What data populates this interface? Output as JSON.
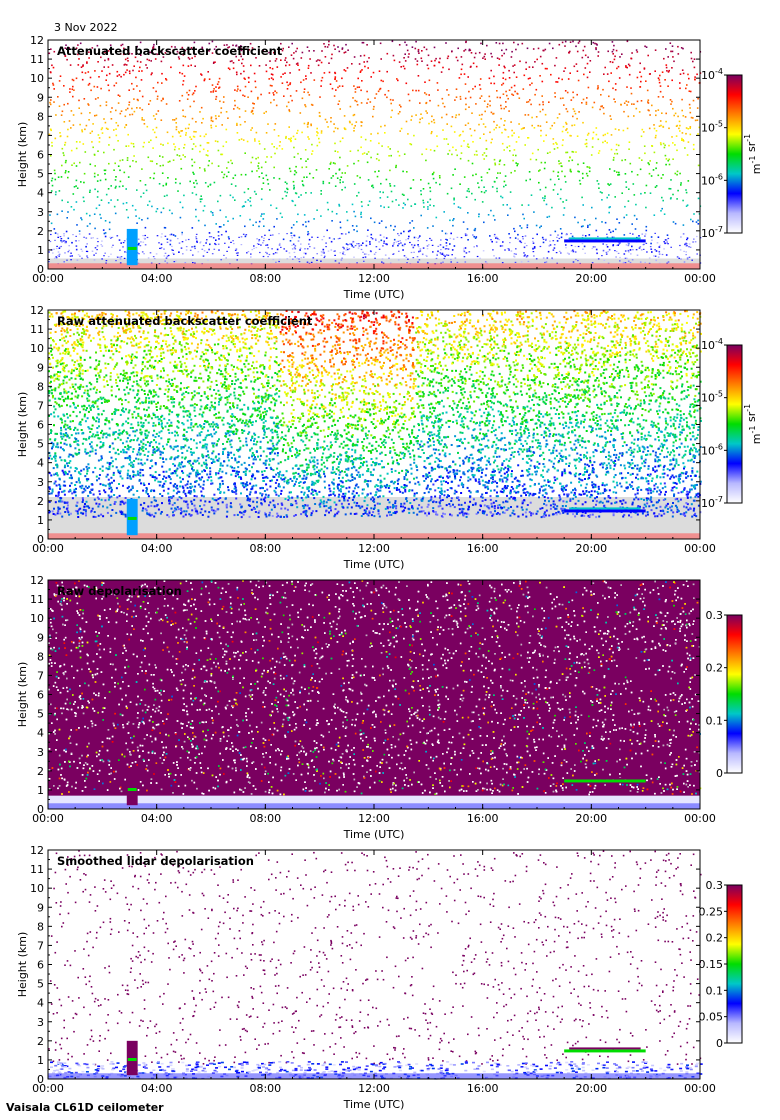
{
  "date": "3 Nov 2022",
  "instrument": "Vaisala CL61D ceilometer",
  "colors": {
    "background_gray": "#dcdcdc",
    "rainbow": [
      "#ffffff",
      "#b8b8ff",
      "#0000ff",
      "#00c8c8",
      "#00dd00",
      "#ffff00",
      "#ff8000",
      "#ff0000",
      "#7a0060"
    ]
  },
  "chart_data": [
    {
      "type": "heatmap",
      "title": "Attenuated backscatter coefficient",
      "xlabel": "Time (UTC)",
      "ylabel": "Height (km)",
      "xticks": [
        "00:00",
        "04:00",
        "08:00",
        "12:00",
        "16:00",
        "20:00",
        "00:00"
      ],
      "yticks": [
        0,
        1,
        2,
        3,
        4,
        5,
        6,
        7,
        8,
        9,
        10,
        11,
        12
      ],
      "ylim": [
        0,
        12
      ],
      "colorbar": {
        "scale": "log",
        "ticks": [
          {
            "base": "10",
            "exp": "-4"
          },
          {
            "base": "10",
            "exp": "-5"
          },
          {
            "base": "10",
            "exp": "-6"
          },
          {
            "base": "10",
            "exp": "-7"
          }
        ],
        "range": [
          1e-07,
          0.0001
        ],
        "unit_base": [
          "m",
          "sr"
        ],
        "unit_exp": [
          "-1",
          "-1"
        ]
      },
      "features": {
        "tower_hours": [
          2.9,
          3.3
        ],
        "tower_top_km": 2.1,
        "cloud_layer_km": 1.55,
        "cloud_hours": [
          19.0,
          22.0
        ]
      }
    },
    {
      "type": "heatmap",
      "title": "Raw attenuated backscatter coefficient",
      "xlabel": "Time (UTC)",
      "ylabel": "Height (km)",
      "xticks": [
        "00:00",
        "04:00",
        "08:00",
        "12:00",
        "16:00",
        "20:00",
        "00:00"
      ],
      "yticks": [
        0,
        1,
        2,
        3,
        4,
        5,
        6,
        7,
        8,
        9,
        10,
        11,
        12
      ],
      "ylim": [
        0,
        12
      ],
      "colorbar": {
        "scale": "log",
        "ticks": [
          {
            "base": "10",
            "exp": "-4"
          },
          {
            "base": "10",
            "exp": "-5"
          },
          {
            "base": "10",
            "exp": "-6"
          },
          {
            "base": "10",
            "exp": "-7"
          }
        ],
        "range": [
          1e-07,
          0.0001
        ],
        "unit_base": [
          "m",
          "sr"
        ],
        "unit_exp": [
          "-1",
          "-1"
        ]
      },
      "features": {
        "tower_hours": [
          2.9,
          3.3
        ],
        "tower_top_km": 2.1,
        "cloud_layer_km": 1.55,
        "cloud_hours": [
          19.0,
          22.0
        ]
      }
    },
    {
      "type": "heatmap",
      "title": "Raw depolarisation",
      "xlabel": "Time (UTC)",
      "ylabel": "Height (km)",
      "xticks": [
        "00:00",
        "04:00",
        "08:00",
        "12:00",
        "16:00",
        "20:00",
        "00:00"
      ],
      "yticks": [
        0,
        1,
        2,
        3,
        4,
        5,
        6,
        7,
        8,
        9,
        10,
        11,
        12
      ],
      "ylim": [
        0,
        12
      ],
      "colorbar": {
        "scale": "linear",
        "ticks": [
          "0.3",
          "0.2",
          "0.1",
          "0"
        ],
        "range": [
          0,
          0.3
        ]
      },
      "features": {
        "tower_hours": [
          2.9,
          3.3
        ],
        "tower_top_km": 2.0,
        "cloud_layer_km": 1.55,
        "cloud_hours": [
          19.0,
          22.0
        ]
      }
    },
    {
      "type": "heatmap",
      "title": "Smoothed lidar depolarisation",
      "xlabel": "Time (UTC)",
      "ylabel": "Height (km)",
      "xticks": [
        "00:00",
        "04:00",
        "08:00",
        "12:00",
        "16:00",
        "20:00",
        "00:00"
      ],
      "yticks": [
        0,
        1,
        2,
        3,
        4,
        5,
        6,
        7,
        8,
        9,
        10,
        11,
        12
      ],
      "ylim": [
        0,
        12
      ],
      "colorbar": {
        "scale": "linear",
        "ticks": [
          "0.3",
          "0.25",
          "0.2",
          "0.15",
          "0.1",
          "0.05",
          "0"
        ],
        "range": [
          0,
          0.3
        ]
      },
      "features": {
        "tower_hours": [
          2.9,
          3.3
        ],
        "tower_top_km": 2.0,
        "cloud_layer_km": 1.55,
        "cloud_hours": [
          19.0,
          22.0
        ]
      }
    }
  ]
}
